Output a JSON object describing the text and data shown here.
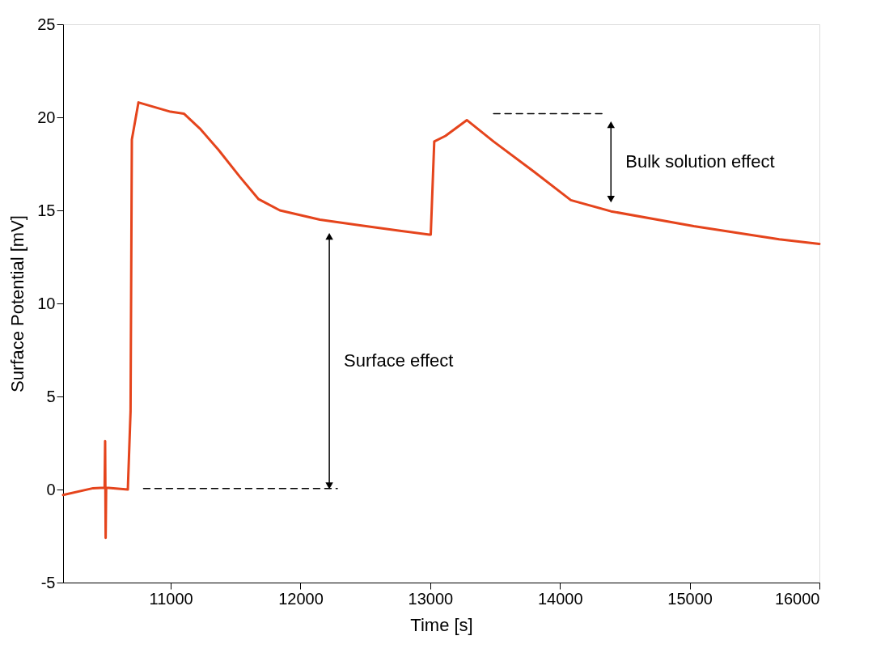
{
  "chart_data": {
    "type": "line",
    "xlabel": "Time [s]",
    "ylabel": "Surface Potential [mV]",
    "xlim": [
      10170,
      16000
    ],
    "xticks": [
      11000,
      12000,
      13000,
      14000,
      15000,
      16000
    ],
    "ylim": [
      -5,
      25
    ],
    "yticks": [
      -5,
      0,
      5,
      10,
      15,
      20,
      25
    ],
    "grid": false,
    "series": [
      {
        "color": "#e5441c",
        "line_style": "solid",
        "x": [
          10170,
          10401,
          10490,
          10494,
          10498,
          10502,
          10669,
          10690,
          10700,
          10751,
          10998,
          11101,
          11224,
          11368,
          11533,
          11677,
          11841,
          12150,
          12459,
          12767,
          12994,
          13004,
          13031,
          13117,
          13282,
          13488,
          13796,
          14084,
          14393,
          15031,
          15690,
          16000
        ],
        "values": [
          -0.29,
          0.07,
          0.1,
          2.6,
          -2.6,
          0.1,
          0.0,
          4.2,
          18.8,
          20.8,
          20.3,
          20.2,
          19.4,
          18.25,
          16.8,
          15.6,
          15.0,
          14.5,
          14.2,
          13.9,
          13.7,
          13.7,
          18.7,
          19.0,
          19.85,
          18.7,
          17.1,
          15.55,
          14.95,
          14.15,
          13.45,
          13.2
        ]
      },
      {
        "type": "line",
        "color": "#000000",
        "line_style": "dashed",
        "x": [
          10790,
          12284
        ],
        "values": [
          0.05,
          0.05
        ]
      },
      {
        "type": "line",
        "color": "#000000",
        "line_style": "dashed",
        "x": [
          13488,
          14340
        ],
        "values": [
          20.2,
          20.2
        ]
      },
      {
        "type": "line",
        "color": "#000000",
        "line_style": "solid",
        "marker": "triangle",
        "x": [
          12222,
          12222
        ],
        "values": [
          0.2,
          13.6
        ]
      },
      {
        "type": "line",
        "color": "#000000",
        "line_style": "solid",
        "marker": "triangle",
        "x": [
          14393,
          14393
        ],
        "values": [
          15.6,
          19.6
        ]
      }
    ],
    "annotations": [
      "Surface effect",
      "Bulk solution effect"
    ]
  }
}
